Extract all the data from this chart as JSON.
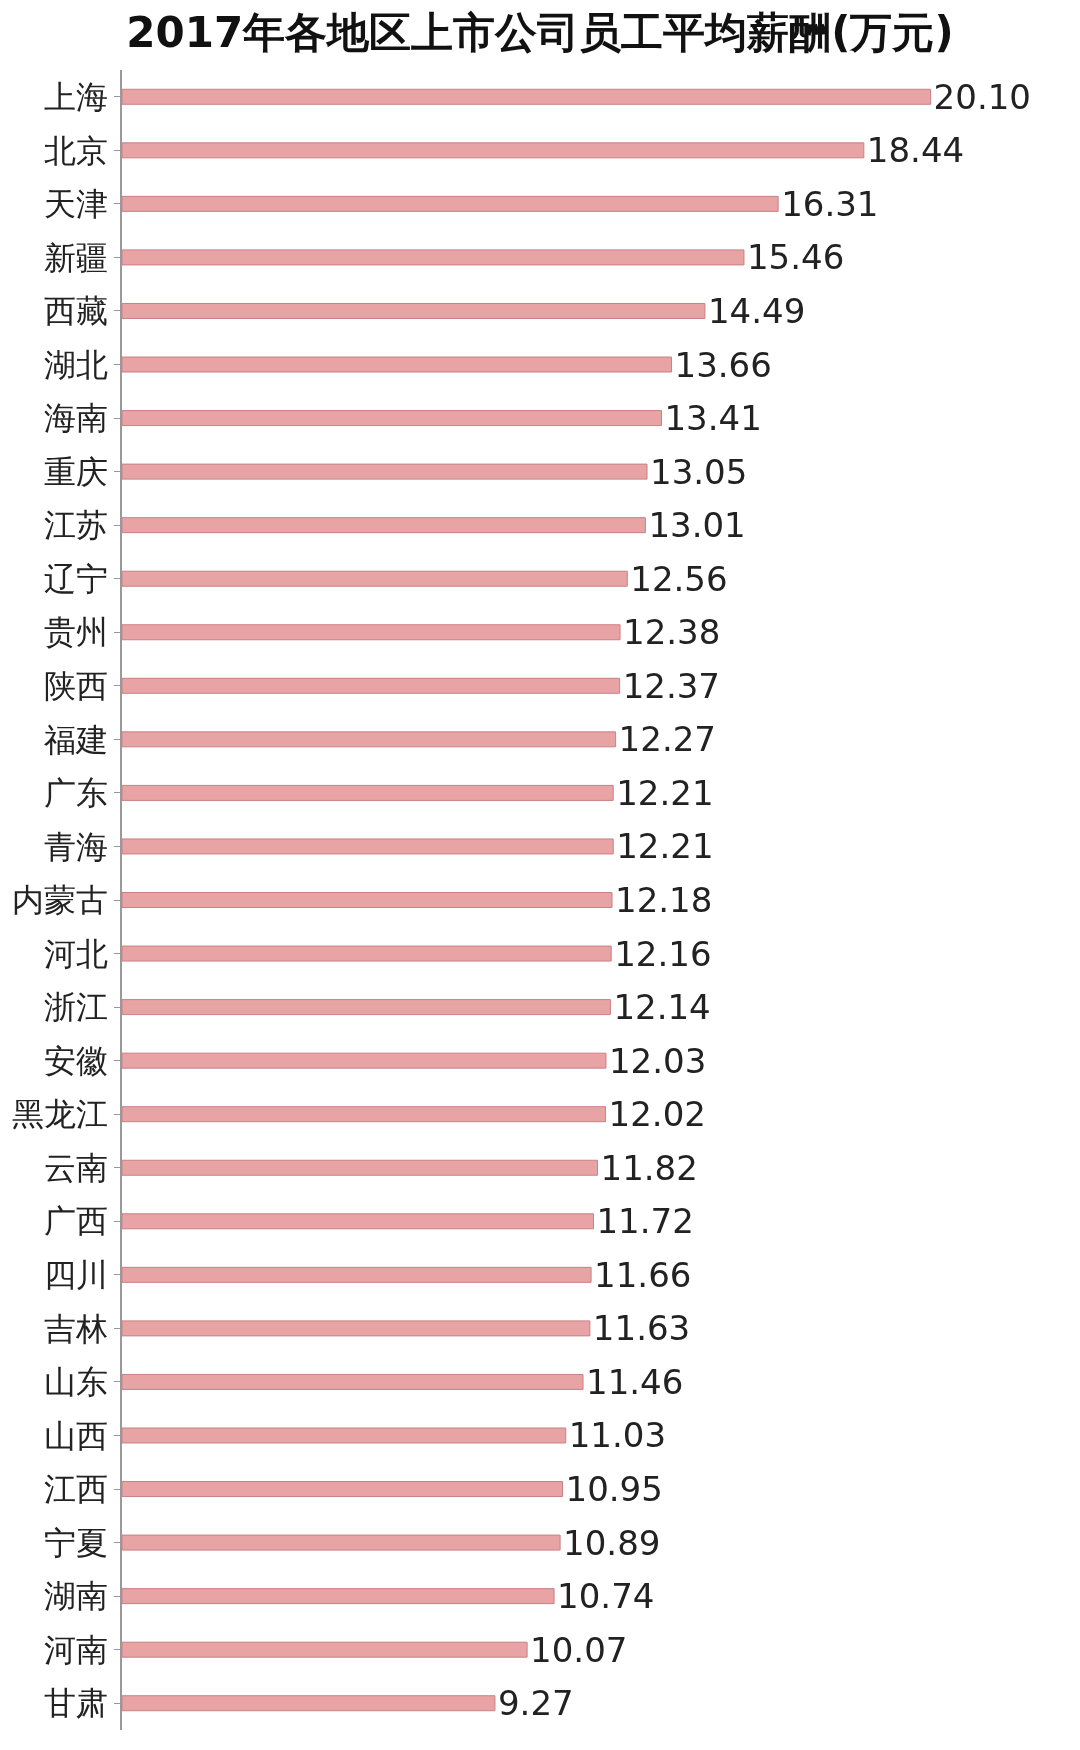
{
  "chart_data": {
    "type": "bar",
    "orientation": "horizontal",
    "title": "2017年各地区上市公司员工平均薪酬(万元)",
    "categories": [
      "上海",
      "北京",
      "天津",
      "新疆",
      "西藏",
      "湖北",
      "海南",
      "重庆",
      "江苏",
      "辽宁",
      "贵州",
      "陕西",
      "福建",
      "广东",
      "青海",
      "内蒙古",
      "河北",
      "浙江",
      "安徽",
      "黑龙江",
      "云南",
      "广西",
      "四川",
      "吉林",
      "山东",
      "山西",
      "江西",
      "宁夏",
      "湖南",
      "河南",
      "甘肃"
    ],
    "values": [
      20.1,
      18.44,
      16.31,
      15.46,
      14.49,
      13.66,
      13.41,
      13.05,
      13.01,
      12.56,
      12.38,
      12.37,
      12.27,
      12.21,
      12.21,
      12.18,
      12.16,
      12.14,
      12.03,
      12.02,
      11.82,
      11.72,
      11.66,
      11.63,
      11.46,
      11.03,
      10.95,
      10.89,
      10.74,
      10.07,
      9.27
    ],
    "value_labels": [
      "20.10",
      "18.44",
      "16.31",
      "15.46",
      "14.49",
      "13.66",
      "13.41",
      "13.05",
      "13.01",
      "12.56",
      "12.38",
      "12.37",
      "12.27",
      "12.21",
      "12.21",
      "12.18",
      "12.16",
      "12.14",
      "12.03",
      "12.02",
      "11.82",
      "11.72",
      "11.66",
      "11.63",
      "11.46",
      "11.03",
      "10.95",
      "10.89",
      "10.74",
      "10.07",
      "9.27"
    ],
    "color": "#e8a3a5",
    "legend": false
  }
}
